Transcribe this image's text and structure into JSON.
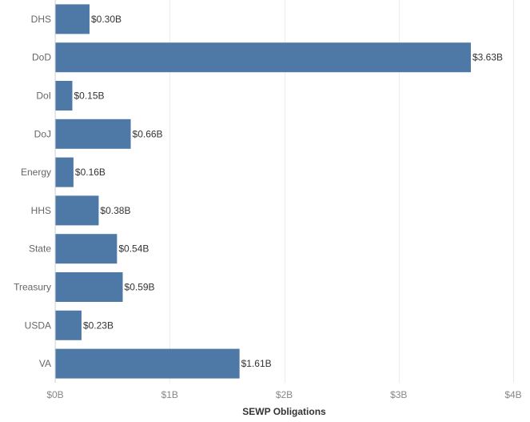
{
  "chart_data": {
    "type": "bar",
    "orientation": "horizontal",
    "categories": [
      "DHS",
      "DoD",
      "DoI",
      "DoJ",
      "Energy",
      "HHS",
      "State",
      "Treasury",
      "USDA",
      "VA"
    ],
    "values": [
      0.3,
      3.63,
      0.15,
      0.66,
      0.16,
      0.38,
      0.54,
      0.59,
      0.23,
      1.61
    ],
    "value_labels": [
      "$0.30B",
      "$3.63B",
      "$0.15B",
      "$0.66B",
      "$0.16B",
      "$0.38B",
      "$0.54B",
      "$0.59B",
      "$0.23B",
      "$1.61B"
    ],
    "xlabel": "SEWP Obligations",
    "xlim": [
      0,
      4
    ],
    "xticks": [
      0,
      1,
      2,
      3,
      4
    ],
    "xtick_labels": [
      "$0B",
      "$1B",
      "$2B",
      "$3B",
      "$4B"
    ],
    "grid": true,
    "bar_color": "#4e79a7"
  }
}
